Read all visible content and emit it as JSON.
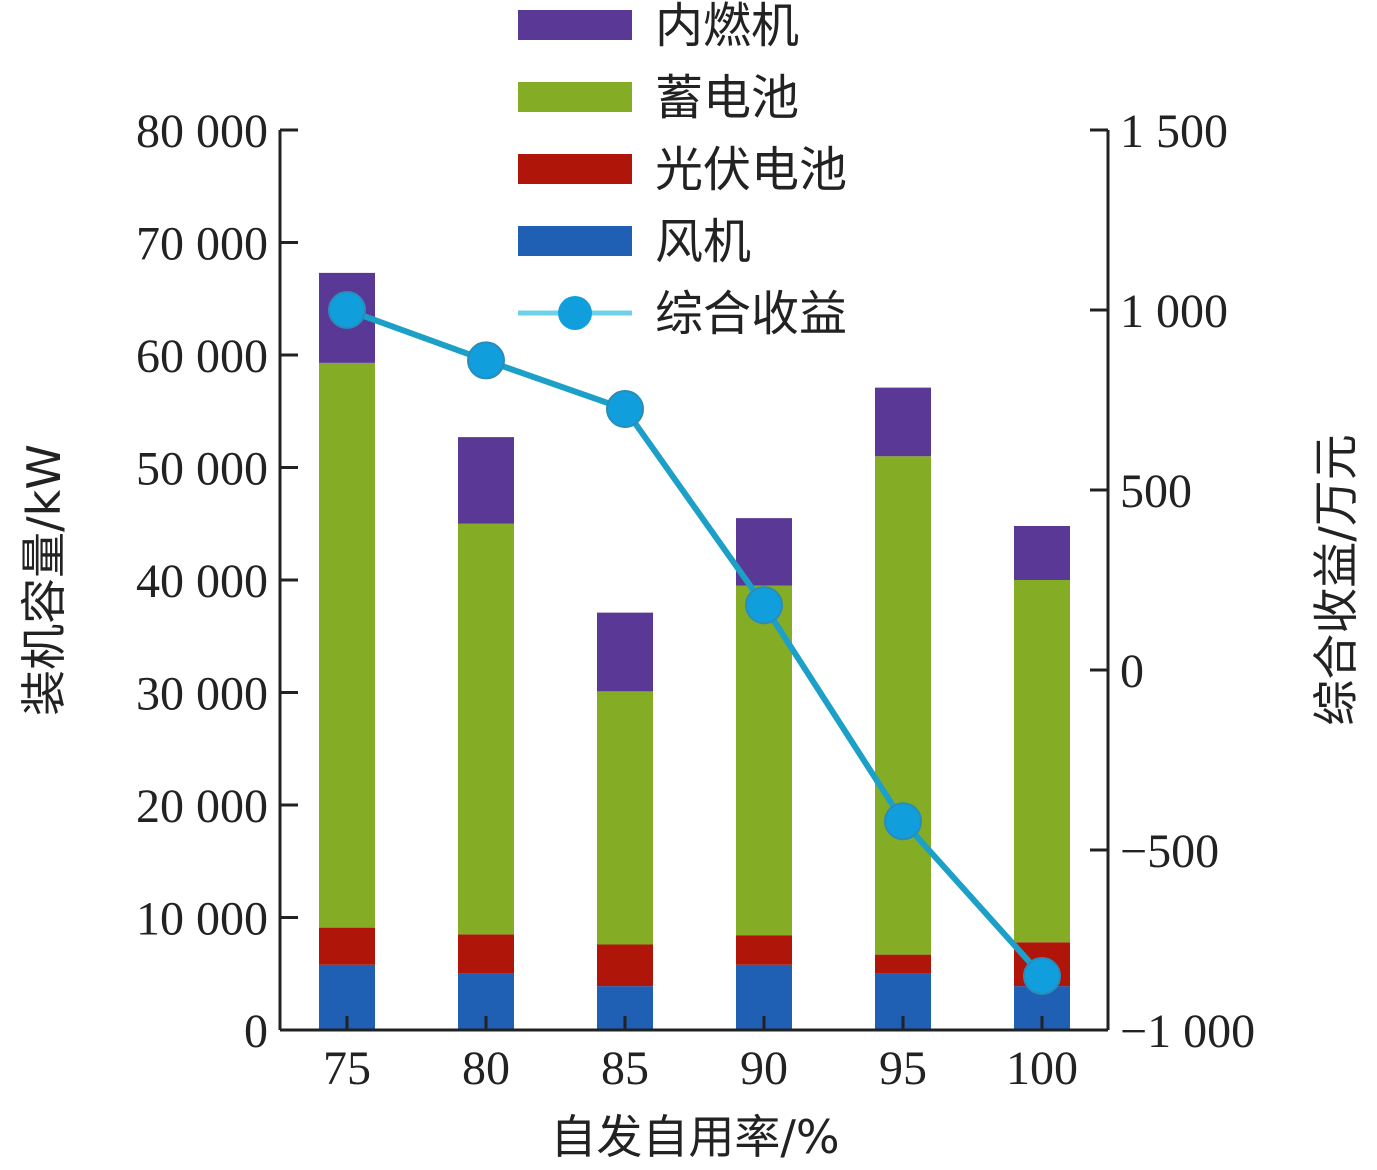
{
  "chart_data": {
    "type": "bar",
    "stacked": true,
    "xlabel": "自发自用率/%",
    "ylabel": "装机容量/kW",
    "y2label": "综合收益/万元",
    "categories": [
      "75",
      "80",
      "85",
      "90",
      "95",
      "100"
    ],
    "ylim": [
      0,
      80000
    ],
    "y2lim": [
      -1000,
      1500
    ],
    "yticks": [
      0,
      10000,
      20000,
      30000,
      40000,
      50000,
      60000,
      70000,
      80000
    ],
    "ytick_labels": [
      "0",
      "10 000",
      "20 000",
      "30 000",
      "40 000",
      "50 000",
      "60 000",
      "70 000",
      "80 000"
    ],
    "y2ticks": [
      -1000,
      -500,
      0,
      500,
      1000,
      1500
    ],
    "y2tick_labels": [
      "−1 000",
      "−500",
      "0",
      "500",
      "1 000",
      "1 500"
    ],
    "series": [
      {
        "name": "风机",
        "color": "#1f5fb4",
        "values": [
          5800,
          5000,
          3900,
          5800,
          5000,
          3900
        ]
      },
      {
        "name": "光伏电池",
        "color": "#b0150a",
        "values": [
          3300,
          3500,
          3700,
          2600,
          1700,
          3900
        ]
      },
      {
        "name": "蓄电池",
        "color": "#84ac24",
        "values": [
          50200,
          36500,
          22500,
          31100,
          44300,
          32200
        ]
      },
      {
        "name": "内燃机",
        "color": "#5a3896",
        "values": [
          8000,
          7700,
          7000,
          6000,
          6100,
          4800
        ]
      }
    ],
    "line_series": {
      "name": "综合收益",
      "axis": "right",
      "color": "#1ca0c8",
      "marker_color": "#109fdc",
      "values": [
        1000,
        860,
        725,
        180,
        -420,
        -850
      ]
    },
    "legend_order": [
      "内燃机",
      "蓄电池",
      "光伏电池",
      "风机",
      "综合收益"
    ],
    "legend_position": "top-center",
    "grid": false
  }
}
